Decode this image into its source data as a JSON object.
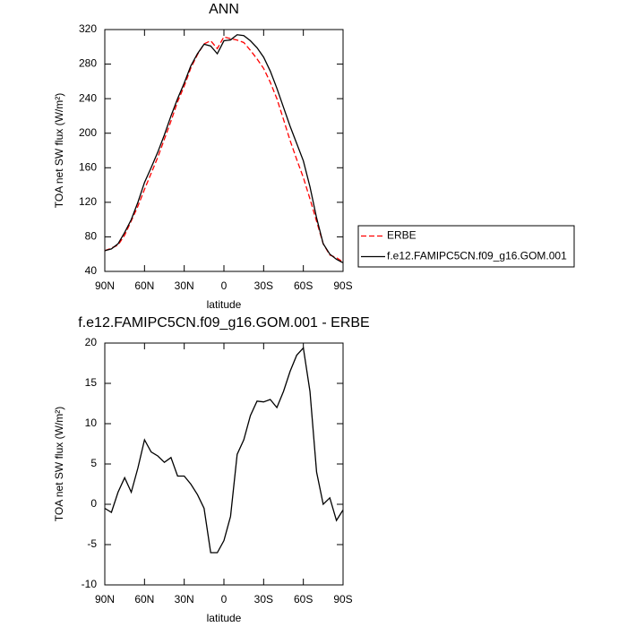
{
  "chart_data": [
    {
      "type": "line",
      "title": "ANN",
      "xlabel": "latitude",
      "ylabel": "TOA net SW flux (W/m²)",
      "x": [
        90,
        85,
        80,
        75,
        70,
        65,
        60,
        55,
        50,
        45,
        40,
        35,
        30,
        25,
        20,
        15,
        10,
        5,
        0,
        -5,
        -10,
        -15,
        -20,
        -25,
        -30,
        -35,
        -40,
        -45,
        -50,
        -55,
        -60,
        -65,
        -70,
        -75,
        -80,
        -85,
        -90
      ],
      "series": [
        {
          "name": "ERBE",
          "color": "#ff0000",
          "dashed": true,
          "values": [
            64,
            67,
            70.5,
            82,
            98.5,
            115.5,
            135,
            153.5,
            172,
            193,
            214,
            236.5,
            254.5,
            275.5,
            291,
            303.5,
            307,
            298,
            311.5,
            309.5,
            307.8,
            305,
            296,
            286,
            275,
            259,
            240,
            216,
            191.5,
            169.5,
            148.6,
            124,
            98,
            72,
            59,
            56,
            50.7
          ]
        },
        {
          "name": "f.e12.FAMIPC5CN.f09_g16.GOM.001",
          "color": "#000000",
          "dashed": false,
          "values": [
            64,
            66,
            72,
            85,
            100,
            120,
            143,
            160,
            178,
            198,
            220,
            240,
            258,
            278,
            292,
            303,
            301,
            292,
            307,
            308,
            314,
            313,
            307,
            299,
            288,
            272,
            252,
            230,
            208,
            188,
            168,
            138,
            102,
            72,
            60,
            54,
            50
          ]
        }
      ],
      "xlim": [
        90,
        -90
      ],
      "xticks": [
        {
          "value": 90,
          "label": "90N"
        },
        {
          "value": 60,
          "label": "60N"
        },
        {
          "value": 30,
          "label": "30N"
        },
        0,
        {
          "value": -30,
          "label": "30S"
        },
        {
          "value": -60,
          "label": "60S"
        },
        {
          "value": -90,
          "label": "90S"
        }
      ],
      "ylim": [
        40,
        320
      ],
      "yticks": [
        40,
        80,
        120,
        160,
        200,
        240,
        280,
        320
      ],
      "legend": "right"
    },
    {
      "type": "line",
      "title": "f.e12.FAMIPC5CN.f09_g16.GOM.001 - ERBE",
      "xlabel": "latitude",
      "ylabel": "TOA net SW flux (W/m²)",
      "x": [
        90,
        85,
        80,
        75,
        70,
        65,
        60,
        55,
        50,
        45,
        40,
        35,
        30,
        25,
        20,
        15,
        10,
        5,
        0,
        -5,
        -10,
        -15,
        -20,
        -25,
        -30,
        -35,
        -40,
        -45,
        -50,
        -55,
        -60,
        -65,
        -70,
        -75,
        -80,
        -85,
        -90
      ],
      "series": [
        {
          "color": "#000000",
          "dashed": false,
          "values": [
            -0.5,
            -1,
            1.5,
            3.3,
            1.5,
            4.5,
            8,
            6.5,
            6,
            5.2,
            5.8,
            3.5,
            3.5,
            2.5,
            1.2,
            -0.5,
            -6,
            -6,
            -4.5,
            -1.5,
            6.2,
            8,
            11,
            12.8,
            12.7,
            13,
            12,
            14,
            16.5,
            18.5,
            19.4,
            14,
            4,
            0,
            0.8,
            -2,
            -0.7
          ]
        }
      ],
      "xlim": [
        90,
        -90
      ],
      "xticks": [
        {
          "value": 90,
          "label": "90N"
        },
        {
          "value": 60,
          "label": "60N"
        },
        {
          "value": 30,
          "label": "30N"
        },
        0,
        {
          "value": -30,
          "label": "30S"
        },
        {
          "value": -60,
          "label": "60S"
        },
        {
          "value": -90,
          "label": "90S"
        }
      ],
      "ylim": [
        -10,
        20
      ],
      "yticks": [
        -10,
        -5,
        0,
        5,
        10,
        15,
        20
      ]
    }
  ]
}
